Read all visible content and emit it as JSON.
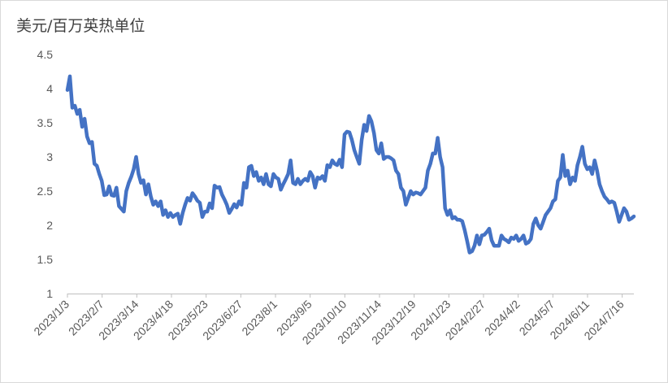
{
  "chart_data": {
    "type": "line",
    "ylabel": "美元/百万英热单位",
    "ylim": [
      1,
      4.5
    ],
    "yticks": [
      "4.5",
      "4",
      "3.5",
      "3",
      "2.5",
      "2",
      "1.5",
      "1"
    ],
    "grid": false,
    "legend": "none",
    "line_color": "#4472c4",
    "x_tick_labels": [
      "2023/1/3",
      "2023/2/7",
      "2023/3/14",
      "2023/4/18",
      "2023/5/23",
      "2023/6/27",
      "2023/8/1",
      "2023/9/5",
      "2023/10/10",
      "2023/11/14",
      "2023/12/19",
      "2024/1/23",
      "2024/2/27",
      "2024/4/2",
      "2024/5/7",
      "2024/6/11",
      "2024/7/16"
    ],
    "series": [
      {
        "points": [
          [
            0,
            3.98
          ],
          [
            1,
            4.18
          ],
          [
            2,
            3.72
          ],
          [
            3,
            3.75
          ],
          [
            4,
            3.63
          ],
          [
            5,
            3.69
          ],
          [
            6,
            3.44
          ],
          [
            7,
            3.56
          ],
          [
            8,
            3.3
          ],
          [
            9,
            3.2
          ],
          [
            10,
            3.22
          ],
          [
            11,
            2.9
          ],
          [
            12,
            2.87
          ],
          [
            13,
            2.75
          ],
          [
            14,
            2.65
          ],
          [
            15,
            2.44
          ],
          [
            16,
            2.45
          ],
          [
            17,
            2.57
          ],
          [
            18,
            2.44
          ],
          [
            19,
            2.43
          ],
          [
            20,
            2.55
          ],
          [
            21,
            2.28
          ],
          [
            22,
            2.24
          ],
          [
            23,
            2.2
          ],
          [
            24,
            2.5
          ],
          [
            25,
            2.62
          ],
          [
            26,
            2.71
          ],
          [
            27,
            2.82
          ],
          [
            28,
            3.0
          ],
          [
            29,
            2.75
          ],
          [
            30,
            2.62
          ],
          [
            31,
            2.66
          ],
          [
            32,
            2.45
          ],
          [
            33,
            2.6
          ],
          [
            34,
            2.42
          ],
          [
            35,
            2.3
          ],
          [
            36,
            2.35
          ],
          [
            37,
            2.28
          ],
          [
            38,
            2.35
          ],
          [
            39,
            2.15
          ],
          [
            40,
            2.22
          ],
          [
            41,
            2.12
          ],
          [
            42,
            2.18
          ],
          [
            43,
            2.12
          ],
          [
            44,
            2.15
          ],
          [
            45,
            2.17
          ],
          [
            46,
            2.02
          ],
          [
            47,
            2.18
          ],
          [
            48,
            2.3
          ],
          [
            49,
            2.4
          ],
          [
            50,
            2.36
          ],
          [
            51,
            2.47
          ],
          [
            52,
            2.42
          ],
          [
            53,
            2.36
          ],
          [
            54,
            2.33
          ],
          [
            55,
            2.12
          ],
          [
            56,
            2.2
          ],
          [
            57,
            2.2
          ],
          [
            58,
            2.32
          ],
          [
            59,
            2.25
          ],
          [
            60,
            2.58
          ],
          [
            61,
            2.55
          ],
          [
            62,
            2.56
          ],
          [
            63,
            2.45
          ],
          [
            64,
            2.38
          ],
          [
            65,
            2.3
          ],
          [
            66,
            2.18
          ],
          [
            67,
            2.24
          ],
          [
            68,
            2.31
          ],
          [
            69,
            2.26
          ],
          [
            70,
            2.35
          ],
          [
            71,
            2.3
          ],
          [
            72,
            2.62
          ],
          [
            73,
            2.55
          ],
          [
            74,
            2.85
          ],
          [
            75,
            2.87
          ],
          [
            76,
            2.72
          ],
          [
            77,
            2.78
          ],
          [
            78,
            2.65
          ],
          [
            79,
            2.7
          ],
          [
            80,
            2.6
          ],
          [
            81,
            2.75
          ],
          [
            82,
            2.6
          ],
          [
            83,
            2.57
          ],
          [
            84,
            2.75
          ],
          [
            85,
            2.7
          ],
          [
            86,
            2.68
          ],
          [
            87,
            2.52
          ],
          [
            88,
            2.6
          ],
          [
            89,
            2.67
          ],
          [
            90,
            2.75
          ],
          [
            91,
            2.95
          ],
          [
            92,
            2.62
          ],
          [
            93,
            2.6
          ],
          [
            94,
            2.68
          ],
          [
            95,
            2.6
          ],
          [
            96,
            2.65
          ],
          [
            97,
            2.68
          ],
          [
            98,
            2.65
          ],
          [
            99,
            2.78
          ],
          [
            100,
            2.72
          ],
          [
            101,
            2.55
          ],
          [
            102,
            2.7
          ],
          [
            103,
            2.68
          ],
          [
            104,
            2.72
          ],
          [
            105,
            2.65
          ],
          [
            106,
            2.88
          ],
          [
            107,
            2.85
          ],
          [
            108,
            2.95
          ],
          [
            109,
            2.9
          ],
          [
            110,
            2.88
          ],
          [
            111,
            2.96
          ],
          [
            112,
            2.85
          ],
          [
            113,
            3.33
          ],
          [
            114,
            3.37
          ],
          [
            115,
            3.36
          ],
          [
            116,
            3.25
          ],
          [
            117,
            3.1
          ],
          [
            118,
            3.0
          ],
          [
            119,
            2.9
          ],
          [
            120,
            3.25
          ],
          [
            121,
            3.47
          ],
          [
            122,
            3.38
          ],
          [
            123,
            3.6
          ],
          [
            124,
            3.52
          ],
          [
            125,
            3.35
          ],
          [
            126,
            3.1
          ],
          [
            127,
            3.05
          ],
          [
            128,
            3.2
          ],
          [
            129,
            2.97
          ],
          [
            130,
            3.0
          ],
          [
            131,
            3.0
          ],
          [
            132,
            2.98
          ],
          [
            133,
            2.95
          ],
          [
            134,
            2.8
          ],
          [
            135,
            2.75
          ],
          [
            136,
            2.55
          ],
          [
            137,
            2.5
          ],
          [
            138,
            2.3
          ],
          [
            139,
            2.4
          ],
          [
            140,
            2.5
          ],
          [
            141,
            2.45
          ],
          [
            142,
            2.48
          ],
          [
            143,
            2.47
          ],
          [
            144,
            2.45
          ],
          [
            145,
            2.5
          ],
          [
            146,
            2.55
          ],
          [
            147,
            2.8
          ],
          [
            148,
            2.9
          ],
          [
            149,
            3.05
          ],
          [
            150,
            3.05
          ],
          [
            151,
            3.28
          ],
          [
            152,
            3.0
          ],
          [
            153,
            2.85
          ],
          [
            154,
            2.25
          ],
          [
            155,
            2.15
          ],
          [
            156,
            2.22
          ],
          [
            157,
            2.1
          ],
          [
            158,
            2.12
          ],
          [
            159,
            2.08
          ],
          [
            160,
            2.08
          ],
          [
            161,
            2.06
          ],
          [
            162,
            1.93
          ],
          [
            163,
            1.77
          ],
          [
            164,
            1.6
          ],
          [
            165,
            1.62
          ],
          [
            166,
            1.7
          ],
          [
            167,
            1.85
          ],
          [
            168,
            1.72
          ],
          [
            169,
            1.85
          ],
          [
            170,
            1.86
          ],
          [
            171,
            1.9
          ],
          [
            172,
            1.95
          ],
          [
            173,
            1.78
          ],
          [
            174,
            1.7
          ],
          [
            175,
            1.7
          ],
          [
            176,
            1.7
          ],
          [
            177,
            1.85
          ],
          [
            178,
            1.8
          ],
          [
            179,
            1.78
          ],
          [
            180,
            1.75
          ],
          [
            181,
            1.82
          ],
          [
            182,
            1.8
          ],
          [
            183,
            1.85
          ],
          [
            184,
            1.77
          ],
          [
            185,
            1.8
          ],
          [
            186,
            1.85
          ],
          [
            187,
            1.73
          ],
          [
            188,
            1.75
          ],
          [
            189,
            1.8
          ],
          [
            190,
            2.02
          ],
          [
            191,
            2.1
          ],
          [
            192,
            2.0
          ],
          [
            193,
            1.95
          ],
          [
            194,
            2.05
          ],
          [
            195,
            2.15
          ],
          [
            196,
            2.2
          ],
          [
            197,
            2.25
          ],
          [
            198,
            2.35
          ],
          [
            199,
            2.38
          ],
          [
            200,
            2.65
          ],
          [
            201,
            2.7
          ],
          [
            202,
            3.03
          ],
          [
            203,
            2.72
          ],
          [
            204,
            2.8
          ],
          [
            205,
            2.6
          ],
          [
            206,
            2.7
          ],
          [
            207,
            2.65
          ],
          [
            208,
            2.88
          ],
          [
            209,
            3.0
          ],
          [
            210,
            3.15
          ],
          [
            211,
            2.9
          ],
          [
            212,
            2.82
          ],
          [
            213,
            2.85
          ],
          [
            214,
            2.75
          ],
          [
            215,
            2.95
          ],
          [
            216,
            2.8
          ],
          [
            217,
            2.6
          ],
          [
            218,
            2.5
          ],
          [
            219,
            2.42
          ],
          [
            220,
            2.38
          ],
          [
            221,
            2.33
          ],
          [
            222,
            2.35
          ],
          [
            223,
            2.33
          ],
          [
            224,
            2.2
          ],
          [
            225,
            2.05
          ],
          [
            226,
            2.15
          ],
          [
            227,
            2.25
          ],
          [
            228,
            2.2
          ],
          [
            229,
            2.08
          ],
          [
            230,
            2.1
          ],
          [
            231,
            2.13
          ]
        ]
      }
    ]
  }
}
